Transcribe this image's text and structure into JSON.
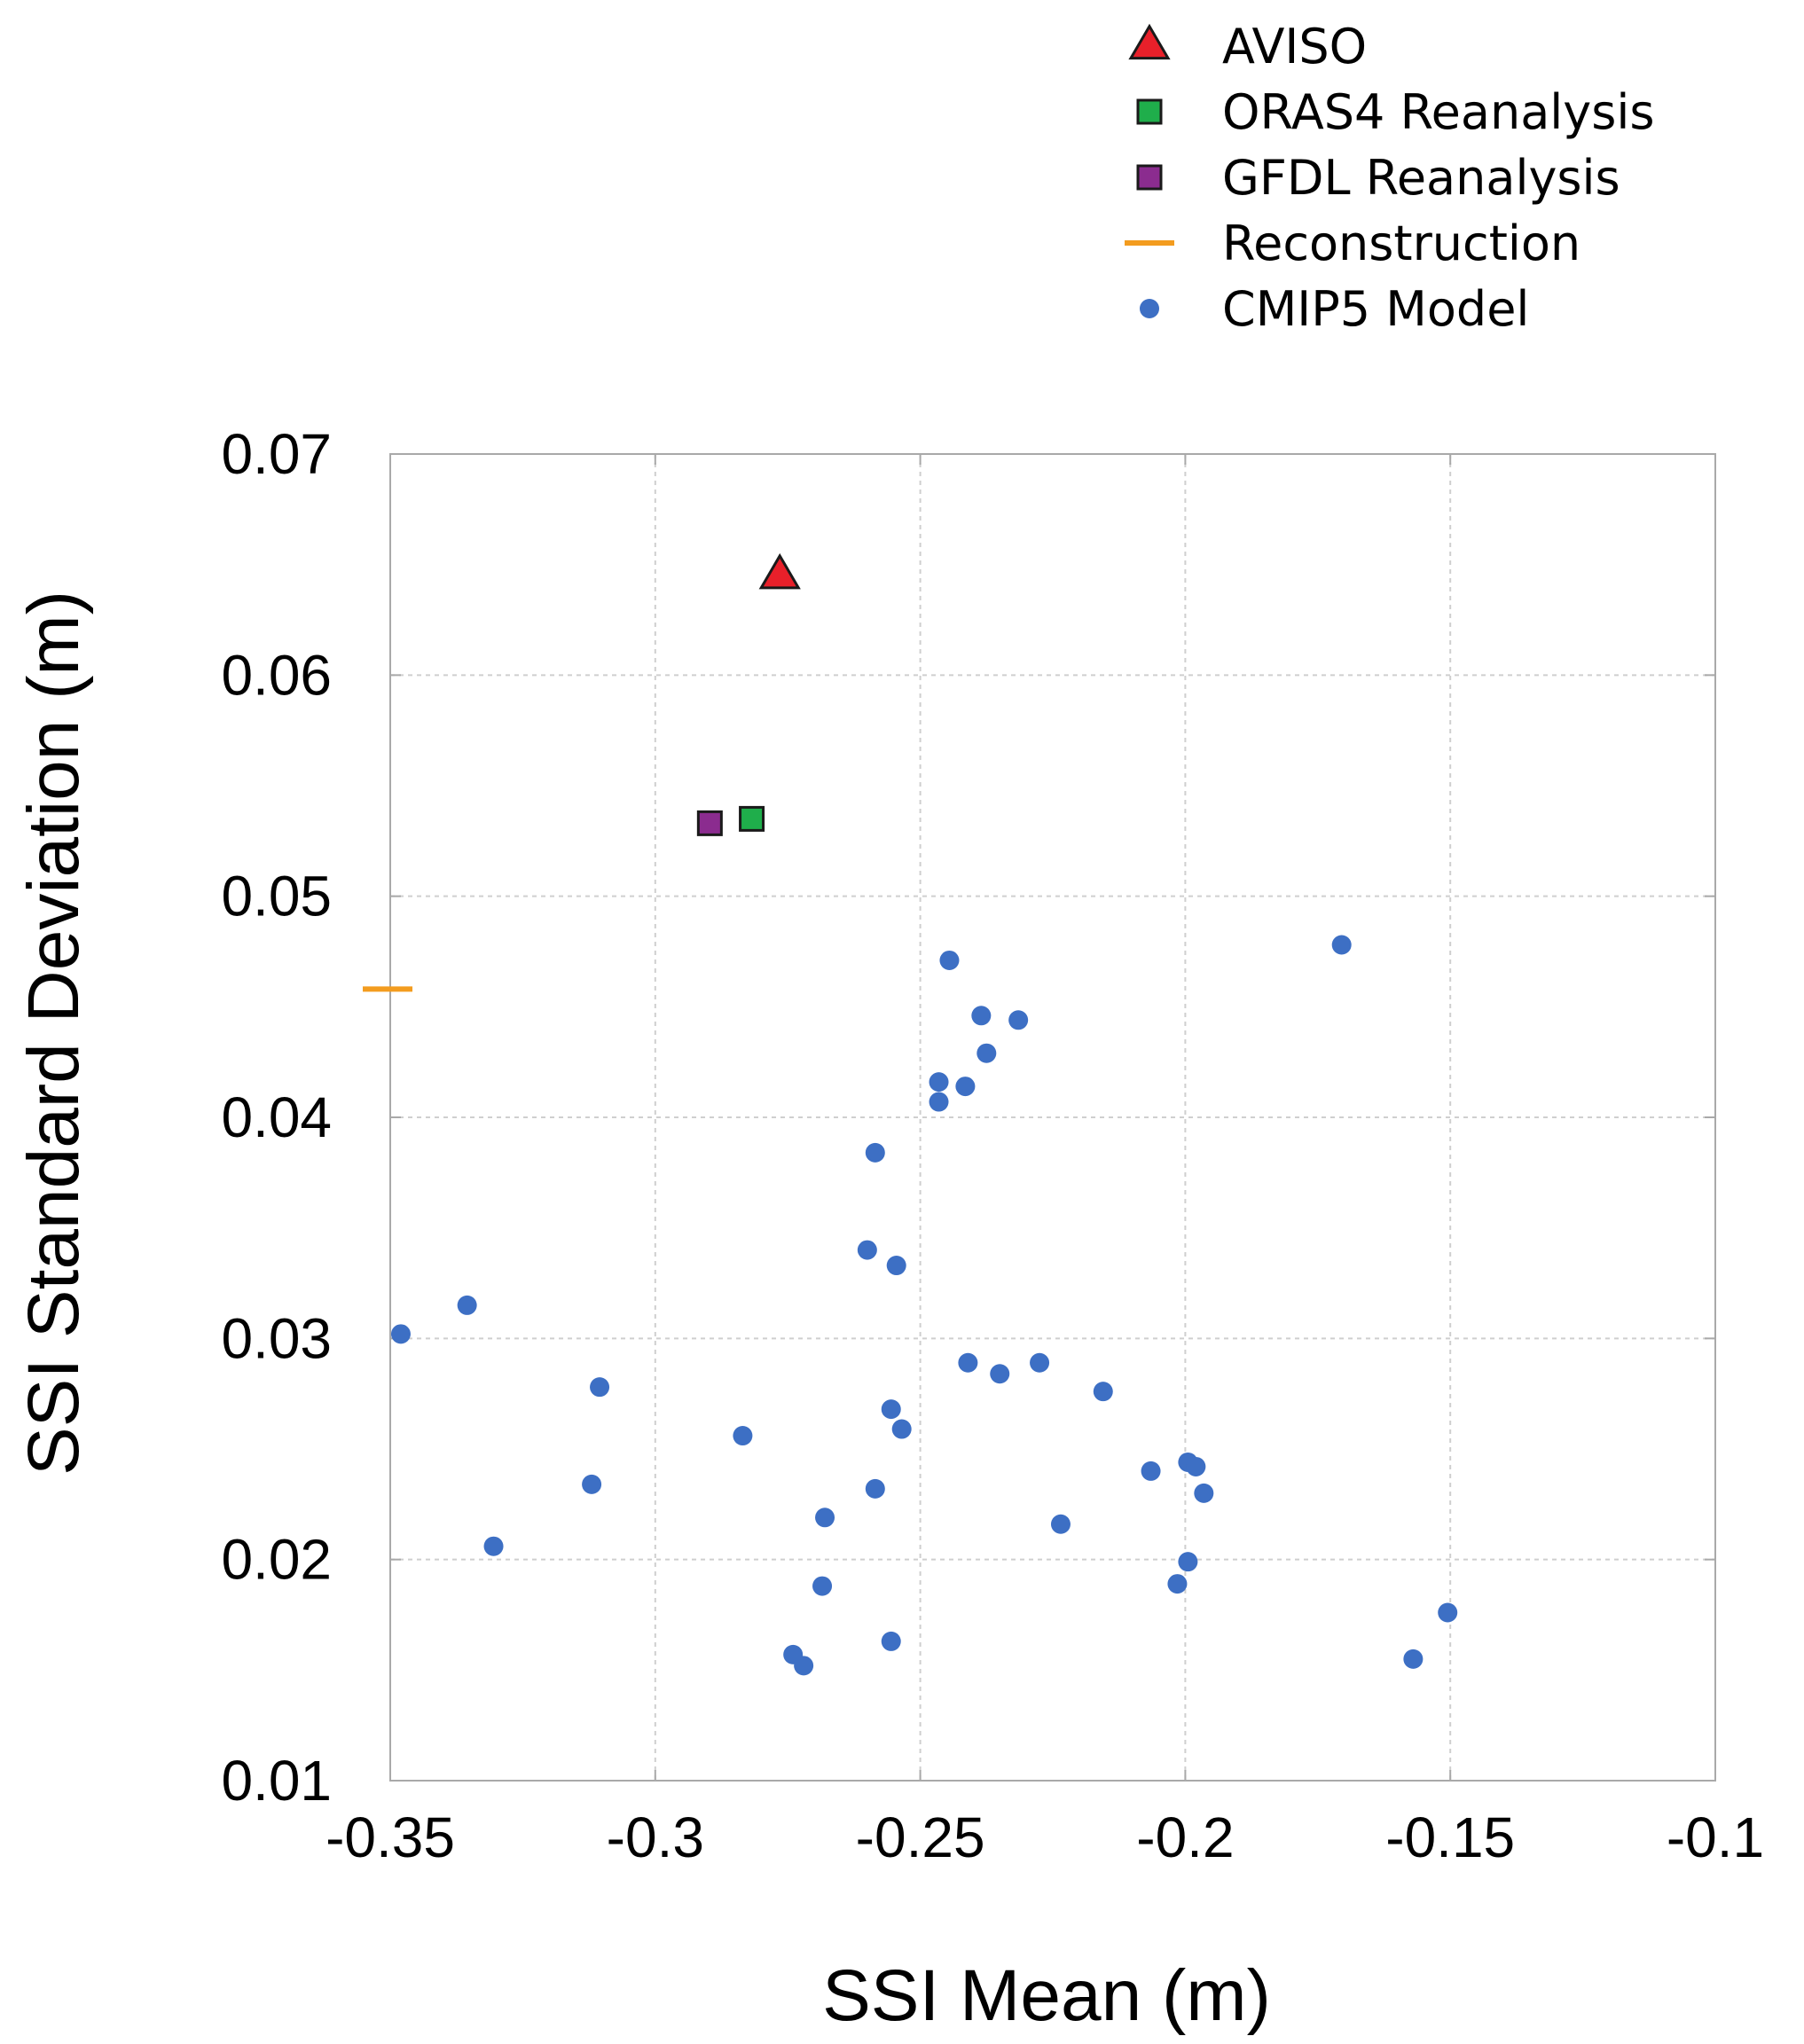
{
  "chart_data": {
    "type": "scatter",
    "title": "",
    "xlabel": "SSI Mean (m)",
    "ylabel": "SSI Standard Deviation (m)",
    "xlim": [
      -0.35,
      -0.1
    ],
    "ylim": [
      0.01,
      0.07
    ],
    "grid": true,
    "legend_position": "top-right",
    "x_ticks": [
      -0.35,
      -0.3,
      -0.25,
      -0.2,
      -0.15,
      -0.1
    ],
    "x_tick_labels": [
      "-0.35",
      "-0.3",
      "-0.25",
      "-0.2",
      "-0.15",
      "-0.1"
    ],
    "y_ticks": [
      0.01,
      0.02,
      0.03,
      0.04,
      0.05,
      0.06,
      0.07
    ],
    "y_tick_labels": [
      "0.01",
      "0.02",
      "0.03",
      "0.04",
      "0.05",
      "0.06",
      "0.07"
    ],
    "legend": [
      {
        "label": "AVISO",
        "marker": "triangle",
        "color": "#e8202a"
      },
      {
        "label": "ORAS4 Reanalysis",
        "marker": "square",
        "color": "#1fae4b"
      },
      {
        "label": "GFDL Reanalysis",
        "marker": "square",
        "color": "#8b2c8f"
      },
      {
        "label": "Reconstruction",
        "marker": "dash",
        "color": "#f39c1f"
      },
      {
        "label": "CMIP5 Model",
        "marker": "circle",
        "color": "#3d6fc4"
      }
    ],
    "series": [
      {
        "name": "AVISO",
        "marker": "triangle",
        "color": "#e8202a",
        "points": [
          {
            "x": -0.2765,
            "y": 0.0645
          }
        ]
      },
      {
        "name": "ORAS4 Reanalysis",
        "marker": "square",
        "color": "#1fae4b",
        "points": [
          {
            "x": -0.2818,
            "y": 0.0535
          }
        ]
      },
      {
        "name": "GFDL Reanalysis",
        "marker": "square",
        "color": "#8b2c8f",
        "points": [
          {
            "x": -0.2897,
            "y": 0.0533
          }
        ]
      },
      {
        "name": "Reconstruction",
        "marker": "dash",
        "color": "#f39c1f",
        "points": [
          {
            "x": -0.3505,
            "y": 0.0458
          }
        ]
      },
      {
        "name": "CMIP5 Model",
        "marker": "circle",
        "color": "#3d6fc4",
        "points": [
          {
            "x": -0.2445,
            "y": 0.0471
          },
          {
            "x": -0.2385,
            "y": 0.0446
          },
          {
            "x": -0.2315,
            "y": 0.0444
          },
          {
            "x": -0.2375,
            "y": 0.0429
          },
          {
            "x": -0.2465,
            "y": 0.0416
          },
          {
            "x": -0.2415,
            "y": 0.0414
          },
          {
            "x": -0.2465,
            "y": 0.0407
          },
          {
            "x": -0.2585,
            "y": 0.0384
          },
          {
            "x": -0.1705,
            "y": 0.0478
          },
          {
            "x": -0.26,
            "y": 0.034
          },
          {
            "x": -0.2545,
            "y": 0.0333
          },
          {
            "x": -0.3355,
            "y": 0.0315
          },
          {
            "x": -0.348,
            "y": 0.0302
          },
          {
            "x": -0.3105,
            "y": 0.0278
          },
          {
            "x": -0.241,
            "y": 0.0289
          },
          {
            "x": -0.2275,
            "y": 0.0289
          },
          {
            "x": -0.235,
            "y": 0.0284
          },
          {
            "x": -0.2155,
            "y": 0.0276
          },
          {
            "x": -0.2555,
            "y": 0.0268
          },
          {
            "x": -0.2535,
            "y": 0.0259
          },
          {
            "x": -0.2835,
            "y": 0.0256
          },
          {
            "x": -0.2065,
            "y": 0.024
          },
          {
            "x": -0.1995,
            "y": 0.0244
          },
          {
            "x": -0.198,
            "y": 0.0242
          },
          {
            "x": -0.1965,
            "y": 0.023
          },
          {
            "x": -0.312,
            "y": 0.0234
          },
          {
            "x": -0.2585,
            "y": 0.0232
          },
          {
            "x": -0.268,
            "y": 0.0219
          },
          {
            "x": -0.2235,
            "y": 0.0216
          },
          {
            "x": -0.3305,
            "y": 0.0206
          },
          {
            "x": -0.1995,
            "y": 0.0199
          },
          {
            "x": -0.2015,
            "y": 0.0189
          },
          {
            "x": -0.2685,
            "y": 0.0188
          },
          {
            "x": -0.2555,
            "y": 0.0163
          },
          {
            "x": -0.274,
            "y": 0.0157
          },
          {
            "x": -0.272,
            "y": 0.0152
          },
          {
            "x": -0.1505,
            "y": 0.0176
          },
          {
            "x": -0.157,
            "y": 0.0155
          }
        ]
      }
    ]
  }
}
